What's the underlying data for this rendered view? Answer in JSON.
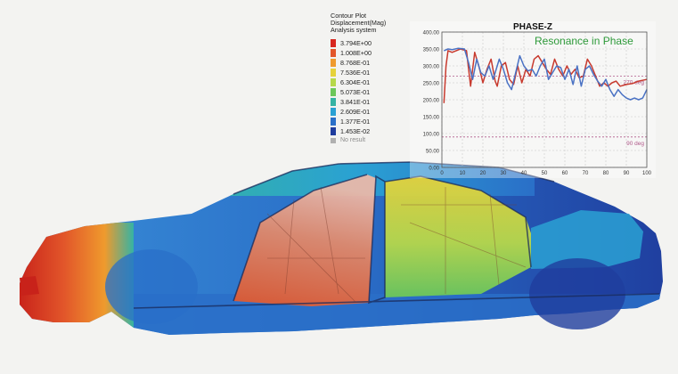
{
  "legend": {
    "title_lines": [
      "Contour Plot",
      "Displacement(Mag)",
      "Analysis system"
    ],
    "items": [
      {
        "label": "3.794E+00",
        "color": "#d7261e"
      },
      {
        "label": "1.008E+00",
        "color": "#e2562a"
      },
      {
        "label": "8.768E-01",
        "color": "#ef9a2d"
      },
      {
        "label": "7.536E-01",
        "color": "#e6d23a"
      },
      {
        "label": "6.304E-01",
        "color": "#b7d84a"
      },
      {
        "label": "5.073E-01",
        "color": "#6cc75a"
      },
      {
        "label": "3.841E-01",
        "color": "#35b3a4"
      },
      {
        "label": "2.609E-01",
        "color": "#2aa1d3"
      },
      {
        "label": "1.377E-01",
        "color": "#2a6fc8"
      },
      {
        "label": "1.453E-02",
        "color": "#1f3d9e"
      }
    ],
    "no_result_label": "No result"
  },
  "chart_data": {
    "type": "line",
    "title": "PHASE-Z",
    "annotation": "Resonance in Phase",
    "annotation_color": "#2e9a3a",
    "xlim": [
      0,
      100
    ],
    "ylim": [
      0,
      400
    ],
    "xticks": [
      "0",
      "10",
      "20",
      "30",
      "40",
      "50",
      "60",
      "70",
      "80",
      "90",
      "100"
    ],
    "yticks": [
      "0.00",
      "50.00",
      "100.00",
      "150.00",
      "200.00",
      "250.00",
      "300.00",
      "350.00",
      "400.00"
    ],
    "grid": true,
    "reference_lines": [
      {
        "y": 270,
        "label": "270 deg",
        "color": "#b05a8a"
      },
      {
        "y": 90,
        "label": "90 deg",
        "color": "#b05a8a"
      }
    ],
    "series": [
      {
        "color": "#c83a2e",
        "points": [
          [
            1,
            190
          ],
          [
            2,
            300
          ],
          [
            3,
            345
          ],
          [
            5,
            340
          ],
          [
            7,
            345
          ],
          [
            9,
            350
          ],
          [
            12,
            345
          ],
          [
            14,
            240
          ],
          [
            16,
            340
          ],
          [
            18,
            300
          ],
          [
            20,
            250
          ],
          [
            22,
            290
          ],
          [
            24,
            320
          ],
          [
            26,
            255
          ],
          [
            27,
            240
          ],
          [
            29,
            300
          ],
          [
            31,
            310
          ],
          [
            33,
            260
          ],
          [
            35,
            245
          ],
          [
            37,
            300
          ],
          [
            39,
            250
          ],
          [
            41,
            290
          ],
          [
            43,
            270
          ],
          [
            45,
            320
          ],
          [
            47,
            330
          ],
          [
            49,
            310
          ],
          [
            51,
            290
          ],
          [
            53,
            275
          ],
          [
            55,
            320
          ],
          [
            57,
            290
          ],
          [
            59,
            270
          ],
          [
            61,
            300
          ],
          [
            63,
            275
          ],
          [
            65,
            290
          ],
          [
            67,
            265
          ],
          [
            69,
            270
          ],
          [
            71,
            320
          ],
          [
            73,
            300
          ],
          [
            75,
            270
          ],
          [
            77,
            240
          ],
          [
            79,
            250
          ],
          [
            81,
            240
          ],
          [
            83,
            250
          ],
          [
            85,
            255
          ],
          [
            87,
            240
          ],
          [
            90,
            245
          ],
          [
            93,
            248
          ],
          [
            96,
            255
          ],
          [
            100,
            260
          ]
        ]
      },
      {
        "color": "#4a72c4",
        "points": [
          [
            1,
            345
          ],
          [
            3,
            350
          ],
          [
            5,
            348
          ],
          [
            8,
            352
          ],
          [
            11,
            350
          ],
          [
            13,
            310
          ],
          [
            15,
            260
          ],
          [
            17,
            320
          ],
          [
            19,
            280
          ],
          [
            21,
            270
          ],
          [
            23,
            300
          ],
          [
            25,
            260
          ],
          [
            27,
            300
          ],
          [
            28,
            320
          ],
          [
            30,
            290
          ],
          [
            32,
            250
          ],
          [
            34,
            230
          ],
          [
            36,
            280
          ],
          [
            38,
            330
          ],
          [
            40,
            300
          ],
          [
            42,
            285
          ],
          [
            44,
            290
          ],
          [
            46,
            270
          ],
          [
            48,
            300
          ],
          [
            50,
            320
          ],
          [
            52,
            260
          ],
          [
            54,
            280
          ],
          [
            56,
            300
          ],
          [
            58,
            295
          ],
          [
            60,
            260
          ],
          [
            62,
            290
          ],
          [
            64,
            245
          ],
          [
            66,
            300
          ],
          [
            68,
            240
          ],
          [
            70,
            290
          ],
          [
            72,
            300
          ],
          [
            74,
            275
          ],
          [
            76,
            255
          ],
          [
            78,
            240
          ],
          [
            80,
            260
          ],
          [
            82,
            230
          ],
          [
            84,
            210
          ],
          [
            86,
            230
          ],
          [
            88,
            215
          ],
          [
            90,
            205
          ],
          [
            92,
            200
          ],
          [
            94,
            205
          ],
          [
            96,
            200
          ],
          [
            98,
            205
          ],
          [
            100,
            230
          ]
        ]
      }
    ]
  }
}
